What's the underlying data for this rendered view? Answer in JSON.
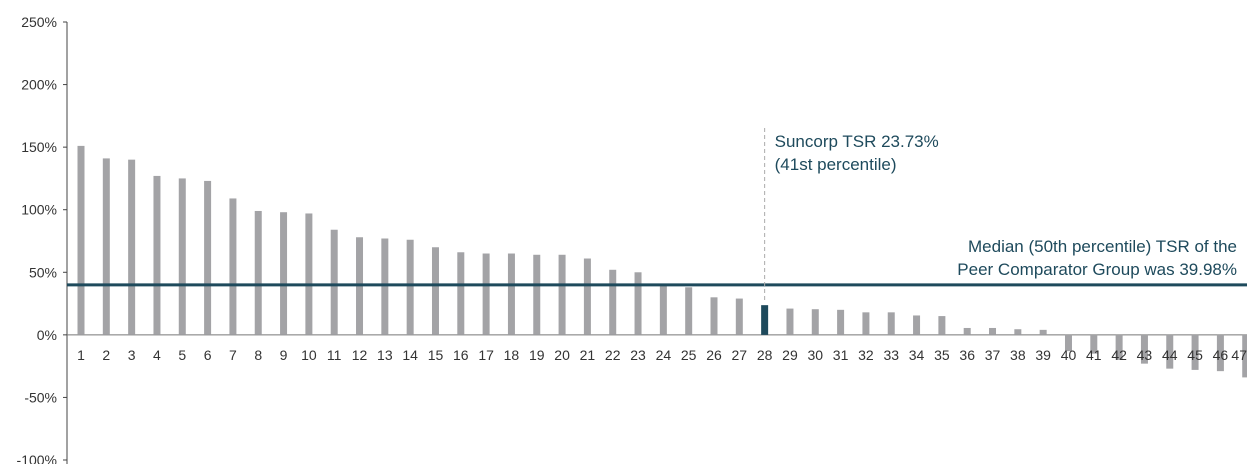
{
  "chart_data": {
    "type": "bar",
    "categories": [
      "1",
      "2",
      "3",
      "4",
      "5",
      "6",
      "7",
      "8",
      "9",
      "10",
      "11",
      "12",
      "13",
      "14",
      "15",
      "16",
      "17",
      "18",
      "19",
      "20",
      "21",
      "22",
      "23",
      "24",
      "25",
      "26",
      "27",
      "28",
      "29",
      "30",
      "31",
      "32",
      "33",
      "34",
      "35",
      "36",
      "37",
      "38",
      "39",
      "40",
      "41",
      "42",
      "43",
      "44",
      "45",
      "46",
      "47"
    ],
    "values": [
      151,
      141,
      140,
      127,
      125,
      123,
      109,
      99,
      98,
      97,
      84,
      78,
      77,
      76,
      70,
      66,
      65,
      65,
      64,
      64,
      61,
      52,
      50,
      40,
      38,
      30,
      29,
      23.73,
      21,
      20.5,
      20,
      18,
      18,
      15.5,
      15,
      5.5,
      5.5,
      4.5,
      4,
      -13,
      -15,
      -20,
      -23,
      -27,
      -28,
      -29,
      -34
    ],
    "ylim": [
      -100,
      250
    ],
    "ytick_values": [
      250,
      200,
      150,
      100,
      50,
      0,
      -50,
      -100
    ],
    "ytick_labels": [
      "250%",
      "200%",
      "150%",
      "100%",
      "50%",
      "0%",
      "-50%",
      "-100%"
    ],
    "highlight_index": 27,
    "median": 39.98,
    "colors": {
      "bar": "#a3a3a6",
      "highlight": "#1e4a5c",
      "median_line": "#1e4a5c",
      "annotation": "#1e4a5c",
      "marker_line": "#aaaaaa"
    },
    "annotations": {
      "suncorp_line1": "Suncorp TSR 23.73%",
      "suncorp_line2": "(41st percentile)",
      "median_line1": "Median (50th percentile) TSR of the",
      "median_line2": "Peer Comparator Group was 39.98%"
    },
    "grid": false
  }
}
